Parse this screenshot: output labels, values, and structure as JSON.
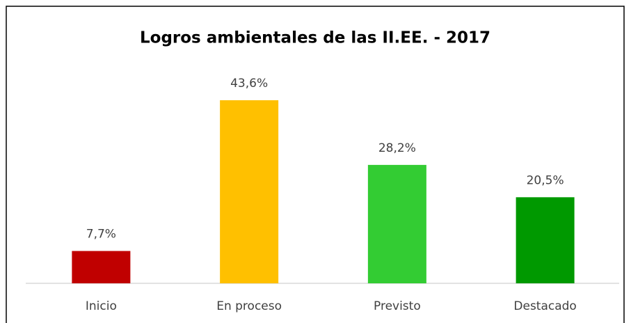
{
  "chart_data": {
    "type": "bar",
    "title": "Logros ambientales de las II.EE. - 2017",
    "categories": [
      "Inicio",
      "En proceso",
      "Previsto",
      "Destacado"
    ],
    "values": [
      7.7,
      43.6,
      28.2,
      20.5
    ],
    "value_labels": [
      "7,7%",
      "43,6%",
      "28,2%",
      "20,5%"
    ],
    "colors": [
      "#c00000",
      "#ffc000",
      "#33cc33",
      "#009900"
    ]
  }
}
